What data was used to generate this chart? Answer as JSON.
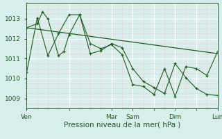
{
  "background_color": "#d8eeed",
  "grid_color": "#ffffff",
  "minor_grid_color": "#f5c8c8",
  "line_color": "#1a5c1a",
  "xlabel": "Pression niveau de la mer( hPa )",
  "ylim": [
    1008.5,
    1013.8
  ],
  "yticks": [
    1009,
    1010,
    1011,
    1012,
    1013
  ],
  "xtick_labels": [
    "Ven",
    "",
    "Mar",
    "Sam",
    "",
    "Dim",
    "",
    "Lun"
  ],
  "xtick_positions": [
    0,
    48,
    96,
    120,
    144,
    168,
    192,
    216
  ],
  "xlim": [
    0,
    216
  ],
  "series1_x": [
    0,
    12,
    18,
    24,
    36,
    42,
    48,
    60,
    72,
    84,
    96,
    108,
    120,
    132,
    144,
    156,
    168,
    180,
    192,
    204,
    216
  ],
  "series1_y": [
    1012.55,
    1012.75,
    1013.35,
    1013.0,
    1011.15,
    1011.35,
    1012.2,
    1013.2,
    1011.25,
    1011.4,
    1011.75,
    1011.55,
    1010.5,
    1009.85,
    1009.55,
    1009.25,
    1010.75,
    1010.05,
    1009.5,
    1009.2,
    1009.15
  ],
  "series2_x": [
    0,
    12,
    24,
    36,
    48,
    60,
    72,
    84,
    96,
    108,
    120,
    132,
    144,
    156,
    168,
    180,
    192,
    204,
    216
  ],
  "series2_y": [
    1010.3,
    1013.05,
    1011.15,
    1012.25,
    1013.2,
    1013.2,
    1011.75,
    1011.5,
    1011.7,
    1011.2,
    1009.7,
    1009.6,
    1009.2,
    1010.5,
    1009.1,
    1010.6,
    1010.5,
    1010.15,
    1011.35
  ],
  "series3_x": [
    0,
    216
  ],
  "series3_y": [
    1012.55,
    1011.25
  ],
  "tick_fontsize": 6.5,
  "xlabel_fontsize": 7.5
}
